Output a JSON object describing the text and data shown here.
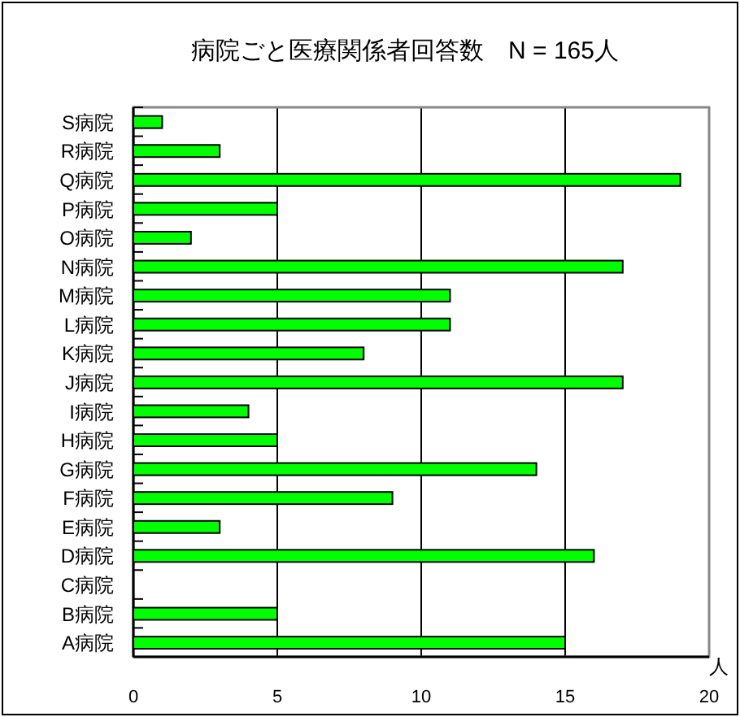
{
  "chart_data": {
    "type": "bar",
    "orientation": "horizontal",
    "title": "病院ごと医療関係者回答数　N = 165人",
    "xlabel": "人",
    "categories": [
      "S病院",
      "R病院",
      "Q病院",
      "P病院",
      "O病院",
      "N病院",
      "M病院",
      "L病院",
      "K病院",
      "J病院",
      "I病院",
      "H病院",
      "G病院",
      "F病院",
      "E病院",
      "D病院",
      "C病院",
      "B病院",
      "A病院"
    ],
    "values": [
      1,
      3,
      19,
      5,
      2,
      17,
      11,
      11,
      8,
      17,
      4,
      5,
      14,
      9,
      3,
      16,
      0,
      5,
      15
    ],
    "color": "#00ff00",
    "xlim": [
      0,
      20
    ],
    "xticks": [
      0,
      5,
      10,
      15,
      20
    ],
    "grid": "x"
  }
}
